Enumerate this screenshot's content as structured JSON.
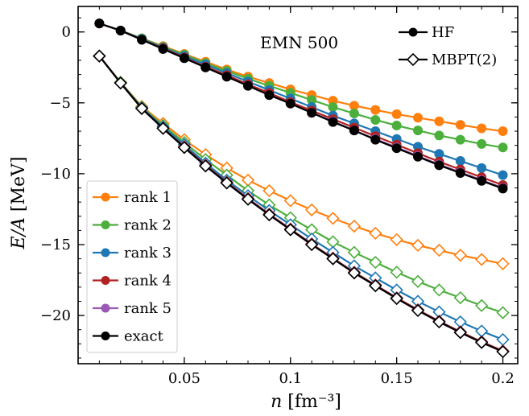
{
  "chart_data": {
    "type": "line",
    "title": "",
    "annotation": "EMN 500",
    "xlabel": "n [fm⁻³]",
    "ylabel": "E/A [MeV]",
    "xlim": [
      0.0,
      0.207
    ],
    "ylim": [
      -23.4,
      1.8
    ],
    "xticks": [
      0.05,
      0.1,
      0.15,
      0.2
    ],
    "xtick_labels": [
      "0.05",
      "0.1",
      "0.15",
      "0.2"
    ],
    "yticks": [
      0,
      -5,
      -10,
      -15,
      -20
    ],
    "ytick_labels": [
      "0",
      "−5",
      "−10",
      "−15",
      "−20"
    ],
    "grid": false,
    "ticks_direction": "in",
    "legend_methods": {
      "placement": "top-right",
      "entries": [
        {
          "label": "HF",
          "marker": "filled-circle",
          "color": "#000000"
        },
        {
          "label": "MBPT(2)",
          "marker": "open-diamond",
          "color": "#000000"
        }
      ]
    },
    "legend_ranks": {
      "placement": "lower-left",
      "entries": [
        {
          "label": "rank 1",
          "color": "#ff7f0e"
        },
        {
          "label": "rank 2",
          "color": "#4caf3c"
        },
        {
          "label": "rank 3",
          "color": "#1f77b4"
        },
        {
          "label": "rank 4",
          "color": "#b22222"
        },
        {
          "label": "rank 5",
          "color": "#9b59b6"
        },
        {
          "label": "exact",
          "color": "#000000"
        }
      ]
    },
    "x": [
      0.01,
      0.02,
      0.03,
      0.04,
      0.05,
      0.06,
      0.07,
      0.08,
      0.09,
      0.1,
      0.11,
      0.12,
      0.13,
      0.14,
      0.15,
      0.16,
      0.17,
      0.18,
      0.19,
      0.2
    ],
    "series": [
      {
        "name": "rank 1",
        "method": "HF",
        "color": "#ff7f0e",
        "values": [
          0.6,
          0.1,
          -0.45,
          -1.0,
          -1.55,
          -2.1,
          -2.65,
          -3.15,
          -3.6,
          -4.05,
          -4.45,
          -4.85,
          -5.2,
          -5.5,
          -5.8,
          -6.05,
          -6.3,
          -6.55,
          -6.8,
          -7.0
        ]
      },
      {
        "name": "rank 2",
        "method": "HF",
        "color": "#4caf3c",
        "values": [
          0.6,
          0.1,
          -0.45,
          -1.05,
          -1.6,
          -2.2,
          -2.75,
          -3.3,
          -3.8,
          -4.3,
          -4.8,
          -5.3,
          -5.75,
          -6.2,
          -6.6,
          -6.95,
          -7.3,
          -7.6,
          -7.9,
          -8.15
        ]
      },
      {
        "name": "rank 3",
        "method": "HF",
        "color": "#1f77b4",
        "values": [
          0.6,
          0.1,
          -0.5,
          -1.1,
          -1.7,
          -2.3,
          -2.9,
          -3.5,
          -4.1,
          -4.7,
          -5.3,
          -5.9,
          -6.45,
          -7.0,
          -7.55,
          -8.1,
          -8.6,
          -9.1,
          -9.6,
          -10.1
        ]
      },
      {
        "name": "rank 4",
        "method": "HF",
        "color": "#b22222",
        "values": [
          0.6,
          0.1,
          -0.55,
          -1.15,
          -1.8,
          -2.45,
          -3.05,
          -3.7,
          -4.3,
          -4.95,
          -5.55,
          -6.15,
          -6.75,
          -7.35,
          -7.95,
          -8.55,
          -9.15,
          -9.7,
          -10.25,
          -10.8
        ]
      },
      {
        "name": "rank 5",
        "method": "HF",
        "color": "#9b59b6",
        "values": [
          0.6,
          0.1,
          -0.55,
          -1.2,
          -1.85,
          -2.5,
          -3.15,
          -3.8,
          -4.45,
          -5.05,
          -5.7,
          -6.3,
          -6.95,
          -7.55,
          -8.15,
          -8.75,
          -9.35,
          -9.9,
          -10.45,
          -11.0
        ]
      },
      {
        "name": "exact",
        "method": "HF",
        "color": "#000000",
        "values": [
          0.6,
          0.1,
          -0.55,
          -1.2,
          -1.85,
          -2.5,
          -3.15,
          -3.8,
          -4.45,
          -5.05,
          -5.7,
          -6.35,
          -6.95,
          -7.6,
          -8.2,
          -8.8,
          -9.4,
          -9.95,
          -10.5,
          -11.05
        ]
      },
      {
        "name": "rank 1",
        "method": "MBPT(2)",
        "color": "#ff7f0e",
        "values": [
          -1.7,
          -3.55,
          -5.25,
          -6.45,
          -7.6,
          -8.65,
          -9.6,
          -10.45,
          -11.2,
          -11.9,
          -12.55,
          -13.15,
          -13.7,
          -14.2,
          -14.65,
          -15.05,
          -15.4,
          -15.75,
          -16.05,
          -16.35
        ]
      },
      {
        "name": "rank 2",
        "method": "MBPT(2)",
        "color": "#4caf3c",
        "values": [
          -1.7,
          -3.55,
          -5.3,
          -6.6,
          -7.8,
          -9.0,
          -10.1,
          -11.2,
          -12.2,
          -13.1,
          -13.95,
          -14.8,
          -15.55,
          -16.25,
          -16.95,
          -17.6,
          -18.2,
          -18.75,
          -19.3,
          -19.8
        ]
      },
      {
        "name": "rank 3",
        "method": "MBPT(2)",
        "color": "#1f77b4",
        "values": [
          -1.7,
          -3.6,
          -5.35,
          -6.7,
          -7.95,
          -9.25,
          -10.45,
          -11.55,
          -12.6,
          -13.6,
          -14.6,
          -15.55,
          -16.5,
          -17.35,
          -18.2,
          -19.0,
          -19.75,
          -20.45,
          -21.1,
          -21.7
        ]
      },
      {
        "name": "rank 4",
        "method": "MBPT(2)",
        "color": "#b22222",
        "values": [
          -1.7,
          -3.6,
          -5.4,
          -6.8,
          -8.1,
          -9.4,
          -10.6,
          -11.75,
          -12.85,
          -13.9,
          -14.95,
          -15.95,
          -16.95,
          -17.85,
          -18.75,
          -19.6,
          -20.4,
          -21.15,
          -21.85,
          -22.5
        ]
      },
      {
        "name": "rank 5",
        "method": "MBPT(2)",
        "color": "#9b59b6",
        "values": [
          -1.7,
          -3.6,
          -5.4,
          -6.8,
          -8.15,
          -9.45,
          -10.65,
          -11.8,
          -12.9,
          -13.95,
          -15.0,
          -16.0,
          -17.0,
          -17.9,
          -18.8,
          -19.65,
          -20.45,
          -21.2,
          -21.9,
          -22.55
        ]
      },
      {
        "name": "exact",
        "method": "MBPT(2)",
        "color": "#000000",
        "values": [
          -1.7,
          -3.6,
          -5.4,
          -6.8,
          -8.15,
          -9.45,
          -10.65,
          -11.8,
          -12.9,
          -13.95,
          -15.0,
          -16.0,
          -17.0,
          -17.9,
          -18.8,
          -19.65,
          -20.45,
          -21.2,
          -21.9,
          -22.55
        ]
      }
    ]
  }
}
